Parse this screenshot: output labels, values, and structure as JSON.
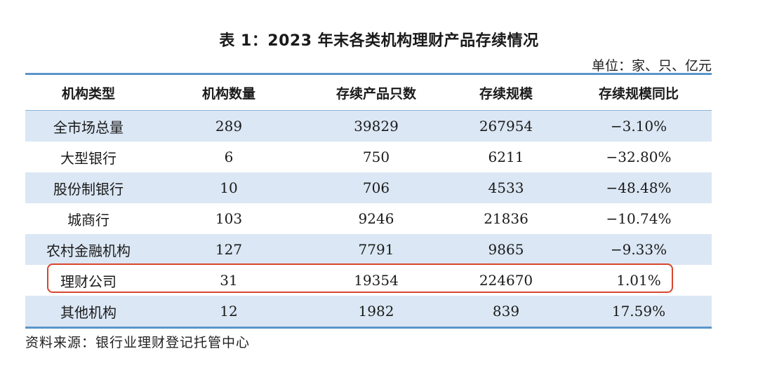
{
  "title": "表 1：2023 年末各类机构理财产品存续情况",
  "unit": "单位：家、只、亿元",
  "headers": [
    "机构类型",
    "机构数量",
    "存续产品只数",
    "存续规模",
    "存续规模同比"
  ],
  "rows": [
    [
      "全市场总量",
      "289",
      "39829",
      "267954",
      "−3.10%"
    ],
    [
      "大型银行",
      "6",
      "750",
      "6211",
      "−32.80%"
    ],
    [
      "股份制银行",
      "10",
      "706",
      "4533",
      "−48.48%"
    ],
    [
      "城商行",
      "103",
      "9246",
      "21836",
      "−10.74%"
    ],
    [
      "农村金融机构",
      "127",
      "7791",
      "9865",
      "−9.33%"
    ],
    [
      "理财公司",
      "31",
      "19354",
      "224670",
      "1.01%"
    ],
    [
      "其他机构",
      "12",
      "1982",
      "839",
      "17.59%"
    ]
  ],
  "highlighted_row": "理财公司",
  "source": "资料来源：银行业理财登记托管中心",
  "colors": {
    "rule": "#5b95c9",
    "shade": "#dbe7f4",
    "highlight": "#d9452d"
  }
}
